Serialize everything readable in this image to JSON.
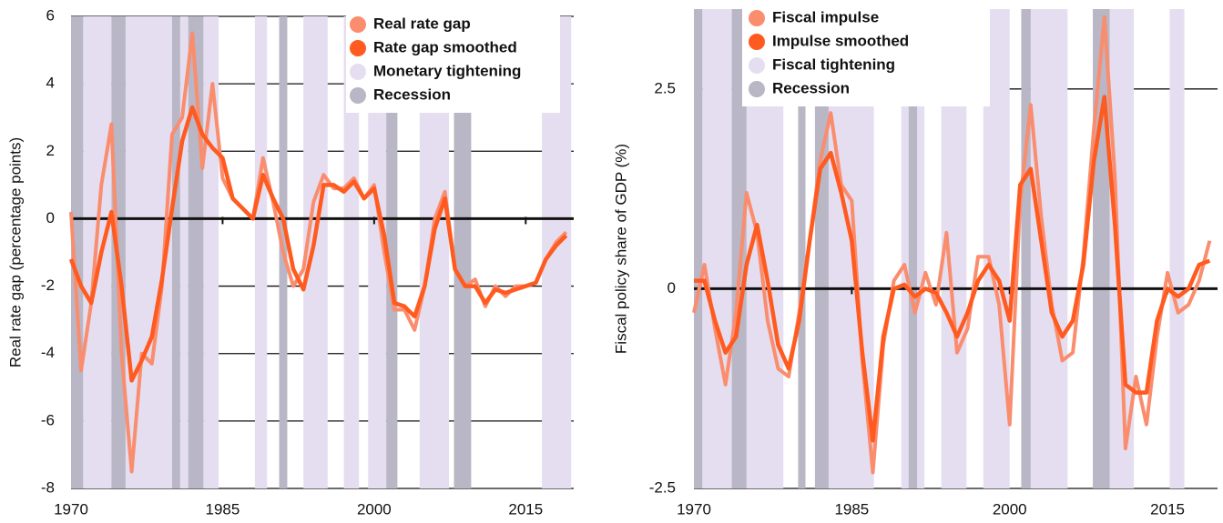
{
  "chart_data": [
    {
      "type": "line",
      "y_label": "Real rate gap (percentage points)",
      "x": [
        1970,
        1971,
        1972,
        1973,
        1974,
        1975,
        1976,
        1977,
        1978,
        1979,
        1980,
        1981,
        1982,
        1983,
        1984,
        1985,
        1986,
        1987,
        1988,
        1989,
        1990,
        1991,
        1992,
        1993,
        1994,
        1995,
        1996,
        1997,
        1998,
        1999,
        2000,
        2001,
        2002,
        2003,
        2004,
        2005,
        2006,
        2007,
        2008,
        2009,
        2010,
        2011,
        2012,
        2013,
        2014,
        2015,
        2016,
        2017,
        2018,
        2019
      ],
      "series": [
        {
          "name": "Real rate gap",
          "color": "#f98d6e",
          "values": [
            0.2,
            -4.5,
            -2.5,
            1.0,
            2.8,
            -4.0,
            -7.5,
            -4.0,
            -4.3,
            -2.0,
            2.5,
            3.0,
            5.5,
            1.5,
            4.0,
            1.2,
            0.6,
            0.3,
            0.0,
            1.8,
            0.5,
            -1.0,
            -2.0,
            -1.5,
            0.5,
            1.3,
            0.9,
            0.9,
            1.2,
            0.6,
            1.0,
            -1.0,
            -2.7,
            -2.7,
            -3.3,
            -2.0,
            0.0,
            0.8,
            -1.5,
            -2.0,
            -1.8,
            -2.6,
            -2.0,
            -2.3,
            -2.0,
            -2.0,
            -1.9,
            -1.2,
            -0.7,
            -0.4
          ]
        },
        {
          "name": "Rate gap smoothed",
          "color": "#ff5a1f",
          "values": [
            -1.2,
            -2.0,
            -2.5,
            -1.0,
            0.2,
            -2.0,
            -4.8,
            -4.2,
            -3.5,
            -1.8,
            0.3,
            2.3,
            3.3,
            2.5,
            2.1,
            1.8,
            0.6,
            0.3,
            0.0,
            1.3,
            0.6,
            0.0,
            -1.5,
            -2.1,
            -0.8,
            1.0,
            1.0,
            0.8,
            1.1,
            0.6,
            0.9,
            -0.5,
            -2.5,
            -2.6,
            -2.9,
            -2.0,
            -0.3,
            0.6,
            -1.5,
            -2.0,
            -2.0,
            -2.5,
            -2.1,
            -2.2,
            -2.1,
            -2.0,
            -1.9,
            -1.2,
            -0.8,
            -0.5
          ]
        }
      ],
      "bands": [
        {
          "name": "Monetary tightening",
          "color": "#e5def0",
          "periods": [
            [
              1971.2,
              1974
            ],
            [
              1975.4,
              1980
            ],
            [
              1980.8,
              1981.6
            ],
            [
              1983.1,
              1984.6
            ],
            [
              1988.2,
              1989.4
            ],
            [
              1993,
              1995.4
            ],
            [
              1997,
              1998.5
            ],
            [
              1999.4,
              2001.2
            ],
            [
              2004.5,
              2007.4
            ],
            [
              2016.6,
              2019.5
            ]
          ]
        },
        {
          "name": "Recession",
          "color": "#b9b6c5",
          "periods": [
            [
              1970,
              1971.2
            ],
            [
              1974,
              1975.4
            ],
            [
              1980,
              1980.8
            ],
            [
              1981.6,
              1983.1
            ],
            [
              1990.6,
              1991.4
            ],
            [
              2001.2,
              2002.3
            ],
            [
              2007.9,
              2009.6
            ]
          ]
        }
      ],
      "xlim": [
        1970,
        2019.75
      ],
      "xticks": [
        1970,
        1985,
        2000,
        2015
      ],
      "ylim": [
        -8,
        6
      ],
      "yticks": [
        -8,
        -6,
        -4,
        -2,
        0,
        2,
        4,
        6
      ],
      "grid": true
    },
    {
      "type": "line",
      "y_label": "Fiscal policy share of GDP (%)",
      "x": [
        1970,
        1971,
        1972,
        1973,
        1974,
        1975,
        1976,
        1977,
        1978,
        1979,
        1980,
        1981,
        1982,
        1983,
        1984,
        1985,
        1986,
        1987,
        1988,
        1989,
        1990,
        1991,
        1992,
        1993,
        1994,
        1995,
        1996,
        1997,
        1998,
        1999,
        2000,
        2001,
        2002,
        2003,
        2004,
        2005,
        2006,
        2007,
        2008,
        2009,
        2010,
        2011,
        2012,
        2013,
        2014,
        2015,
        2016,
        2017,
        2018,
        2019
      ],
      "series": [
        {
          "name": "Fiscal impulse",
          "color": "#f98d6e",
          "values": [
            -0.3,
            0.3,
            -0.5,
            -1.2,
            -0.3,
            1.2,
            0.7,
            -0.4,
            -1.0,
            -1.1,
            -0.3,
            0.6,
            1.6,
            2.2,
            1.3,
            1.1,
            -0.9,
            -2.3,
            -0.7,
            0.1,
            0.3,
            -0.3,
            0.2,
            -0.2,
            0.7,
            -0.8,
            -0.5,
            0.4,
            0.4,
            -0.2,
            -1.7,
            1.1,
            2.3,
            0.9,
            -0.2,
            -0.9,
            -0.8,
            0.4,
            2.0,
            3.4,
            1.4,
            -2.0,
            -1.1,
            -1.7,
            -0.6,
            0.2,
            -0.3,
            -0.2,
            0.1,
            0.6
          ]
        },
        {
          "name": "Impulse smoothed",
          "color": "#ff5a1f",
          "values": [
            0.1,
            0.1,
            -0.4,
            -0.8,
            -0.6,
            0.3,
            0.8,
            0.1,
            -0.7,
            -1.0,
            -0.4,
            0.6,
            1.5,
            1.7,
            1.2,
            0.6,
            -0.8,
            -1.9,
            -0.6,
            0.0,
            0.05,
            -0.1,
            0.0,
            -0.05,
            -0.3,
            -0.6,
            -0.3,
            0.1,
            0.3,
            0.1,
            -0.4,
            1.3,
            1.5,
            0.6,
            -0.3,
            -0.6,
            -0.4,
            0.3,
            1.6,
            2.4,
            0.8,
            -1.2,
            -1.3,
            -1.3,
            -0.4,
            0.0,
            -0.1,
            0.0,
            0.3,
            0.35
          ]
        }
      ],
      "bands": [
        {
          "name": "Fiscal tightening",
          "color": "#e5def0",
          "periods": [
            [
              1970.8,
              1973.6
            ],
            [
              1975,
              1978.5
            ],
            [
              1982.8,
              1987.1
            ],
            [
              1989.7,
              1990.4
            ],
            [
              1991.2,
              1991.9
            ],
            [
              1993.5,
              1995.9
            ],
            [
              1997.5,
              2000
            ],
            [
              2002,
              2005.5
            ],
            [
              2009.5,
              2011.8
            ],
            [
              2015.2,
              2016.6
            ]
          ]
        },
        {
          "name": "Recession",
          "color": "#b9b6c5",
          "periods": [
            [
              1970,
              1970.8
            ],
            [
              1973.6,
              1975
            ],
            [
              1979.9,
              1980.6
            ],
            [
              1981.5,
              1982.8
            ],
            [
              1990.4,
              1991.2
            ],
            [
              2001.1,
              2002
            ],
            [
              2007.9,
              2009.5
            ]
          ]
        }
      ],
      "xlim": [
        1970,
        2019.75
      ],
      "xticks": [
        1970,
        1985,
        2000,
        2015
      ],
      "ylim": [
        -2.5,
        3.5
      ],
      "yticks": [
        -2.5,
        0,
        2.5
      ],
      "grid": true
    }
  ]
}
